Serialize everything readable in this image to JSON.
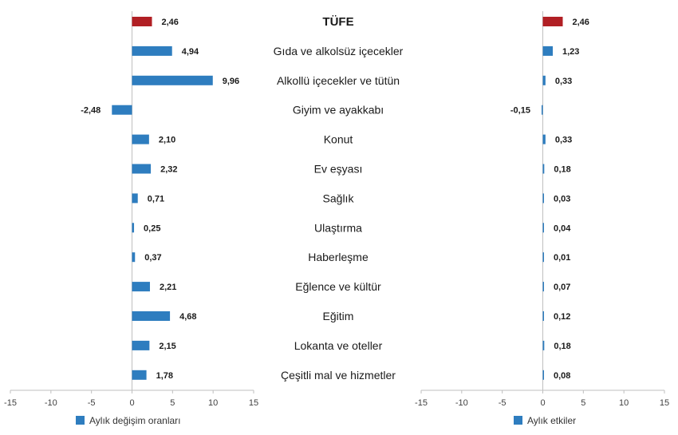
{
  "chart_data": [
    {
      "type": "bar",
      "orientation": "horizontal",
      "legend": "Aylık değişim oranları",
      "legend_placement": "bottom-left",
      "xlim": [
        -15,
        15
      ],
      "ticks": [
        -15,
        -10,
        -5,
        0,
        5,
        10,
        15
      ],
      "tick_labels": [
        "-15",
        "-10",
        "-5",
        "0",
        "5",
        "10",
        "15"
      ],
      "values": [
        2.46,
        4.94,
        9.96,
        -2.48,
        2.1,
        2.32,
        0.71,
        0.25,
        0.37,
        2.21,
        4.68,
        2.15,
        1.78
      ],
      "value_labels": [
        "2,46",
        "4,94",
        "9,96",
        "-2,48",
        "2,10",
        "2,32",
        "0,71",
        "0,25",
        "0,37",
        "2,21",
        "4,68",
        "2,15",
        "1,78"
      ]
    },
    {
      "type": "bar",
      "orientation": "horizontal",
      "legend": "Aylık etkiler",
      "legend_placement": "bottom-left",
      "xlim": [
        -15,
        15
      ],
      "ticks": [
        -15,
        -10,
        -5,
        0,
        5,
        10,
        15
      ],
      "tick_labels": [
        "-15",
        "-10",
        "-5",
        "0",
        "5",
        "10",
        "15"
      ],
      "values": [
        2.46,
        1.23,
        0.33,
        -0.15,
        0.33,
        0.18,
        0.03,
        0.04,
        0.01,
        0.07,
        0.12,
        0.18,
        0.08
      ],
      "value_labels": [
        "2,46",
        "1,23",
        "0,33",
        "-0,15",
        "0,33",
        "0,18",
        "0,03",
        "0,04",
        "0,01",
        "0,07",
        "0,12",
        "0,18",
        "0,08"
      ]
    }
  ],
  "categories": [
    "TÜFE",
    "Gıda ve alkolsüz içecekler",
    "Alkollü içecekler ve tütün",
    "Giyim ve ayakkabı",
    "Konut",
    "Ev eşyası",
    "Sağlık",
    "Ulaştırma",
    "Haberleşme",
    "Eğlence ve kültür",
    "Eğitim",
    "Lokanta ve oteller",
    "Çeşitli mal ve hizmetler"
  ],
  "colors": {
    "headline": "#b11f24",
    "series": "#2e7dbf",
    "axis": "#bfbfbf"
  }
}
